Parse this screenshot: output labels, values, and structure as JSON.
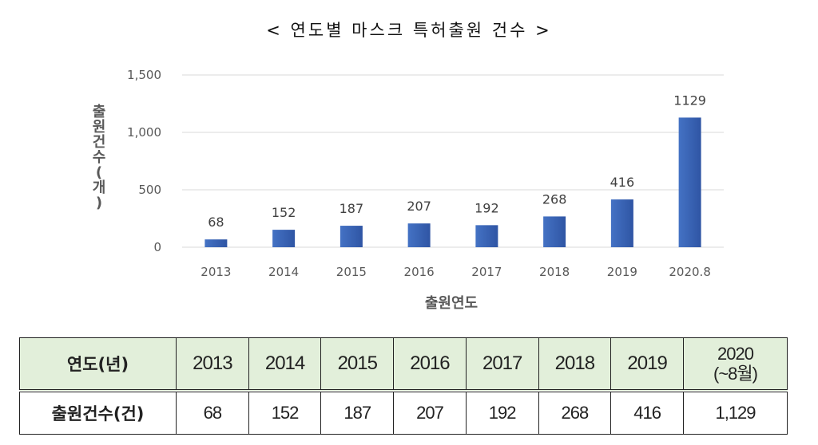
{
  "title": "< 연도별 마스크 특허출원 건수 >",
  "chart_data": {
    "type": "bar",
    "categories": [
      "2013",
      "2014",
      "2015",
      "2016",
      "2017",
      "2018",
      "2019",
      "2020.8"
    ],
    "values": [
      68,
      152,
      187,
      207,
      192,
      268,
      416,
      1129
    ],
    "data_labels": [
      "68",
      "152",
      "187",
      "207",
      "192",
      "268",
      "416",
      "1129"
    ],
    "y_ticks": [
      0,
      500,
      1000,
      1500
    ],
    "y_tick_labels": [
      "0",
      "500",
      "1,000",
      "1,500"
    ],
    "ylim": [
      0,
      1500
    ],
    "xlabel": "출원연도",
    "ylabel": "출원건수(개)",
    "grid": true,
    "colors": {
      "bar": "#4472c4",
      "bar_dark": "#2f55a4",
      "grid": "#d9d9d9"
    }
  },
  "table": {
    "header_label": "연도(년)",
    "years": [
      "2013",
      "2014",
      "2015",
      "2016",
      "2017",
      "2018",
      "2019"
    ],
    "last_year_line1": "2020",
    "last_year_line2": "(~8월)",
    "row_label": "출원건수(건)",
    "counts": [
      "68",
      "152",
      "187",
      "207",
      "192",
      "268",
      "416",
      "1,129"
    ],
    "header_bg": "#e2efda"
  }
}
